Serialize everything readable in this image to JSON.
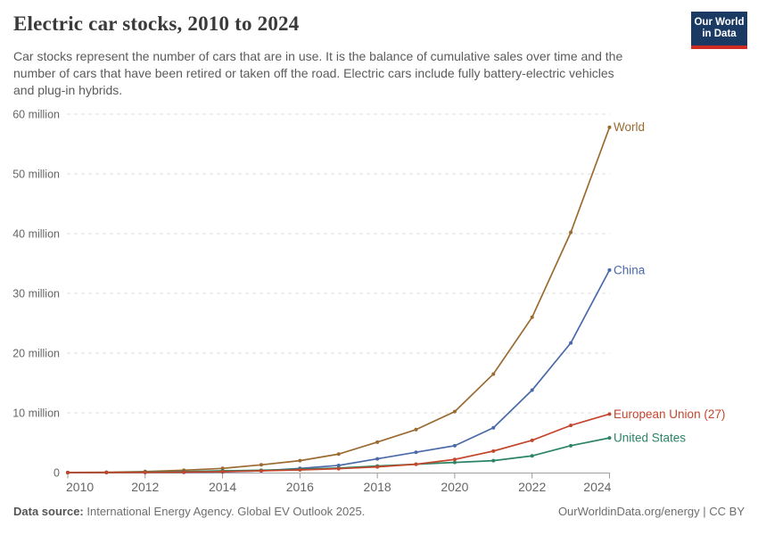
{
  "header": {
    "title": "Electric car stocks, 2010 to 2024",
    "subtitle_lines": [
      "Car stocks represent the number of cars that are in use. It is the balance of cumulative sales over time and the",
      "number of cars that have been retired or taken off the road. Electric cars include fully battery-electric vehicles",
      "and plug-in hybrids."
    ],
    "logo": {
      "line1": "Our World",
      "line2": "in Data"
    }
  },
  "footer": {
    "source_label": "Data source:",
    "source_text": "International Energy Agency. Global EV Outlook 2025.",
    "link_text": "OurWorldinData.org/energy | CC BY"
  },
  "colors": {
    "grid": "#dcdcdc",
    "axis": "#a0a0a0",
    "tick": "#999999",
    "tick_label": "#666666",
    "logo_bg": "#1a3a63",
    "logo_bar": "#cf2d24"
  },
  "chart_data": {
    "type": "line",
    "title": "Electric car stocks, 2010 to 2024",
    "xlabel": "",
    "ylabel": "",
    "unit": "million cars",
    "xlim": [
      2010,
      2024
    ],
    "ylim": [
      0,
      60
    ],
    "grid": "horizontal-dashed",
    "legend_position": "right-end-labels",
    "x": [
      2010,
      2011,
      2012,
      2013,
      2014,
      2015,
      2016,
      2017,
      2018,
      2019,
      2020,
      2021,
      2022,
      2023,
      2024
    ],
    "xticks": [
      2010,
      2012,
      2014,
      2016,
      2018,
      2020,
      2022,
      2024
    ],
    "yticks": [
      {
        "value": 0,
        "label": "0"
      },
      {
        "value": 10,
        "label": "10 million"
      },
      {
        "value": 20,
        "label": "20 million"
      },
      {
        "value": 30,
        "label": "30 million"
      },
      {
        "value": 40,
        "label": "40 million"
      },
      {
        "value": 50,
        "label": "50 million"
      },
      {
        "value": 60,
        "label": "60 million"
      }
    ],
    "series": [
      {
        "name": "World",
        "color": "#9a6a30",
        "values": [
          0.02,
          0.06,
          0.18,
          0.4,
          0.7,
          1.3,
          2.0,
          3.1,
          5.1,
          7.2,
          10.2,
          16.5,
          26.0,
          40.2,
          57.8
        ]
      },
      {
        "name": "China",
        "color": "#4a69a8",
        "values": [
          0.0,
          0.01,
          0.02,
          0.03,
          0.1,
          0.3,
          0.7,
          1.2,
          2.3,
          3.4,
          4.5,
          7.5,
          13.8,
          21.7,
          33.9
        ]
      },
      {
        "name": "United States",
        "color": "#2c8465",
        "values": [
          0.0,
          0.02,
          0.07,
          0.17,
          0.3,
          0.4,
          0.56,
          0.76,
          1.1,
          1.4,
          1.7,
          2.0,
          2.8,
          4.5,
          5.8
        ]
      },
      {
        "name": "European Union (27)",
        "color": "#c3462d",
        "values": [
          0.0,
          0.01,
          0.03,
          0.08,
          0.15,
          0.3,
          0.45,
          0.65,
          0.95,
          1.4,
          2.2,
          3.6,
          5.4,
          7.9,
          9.8
        ]
      }
    ]
  }
}
